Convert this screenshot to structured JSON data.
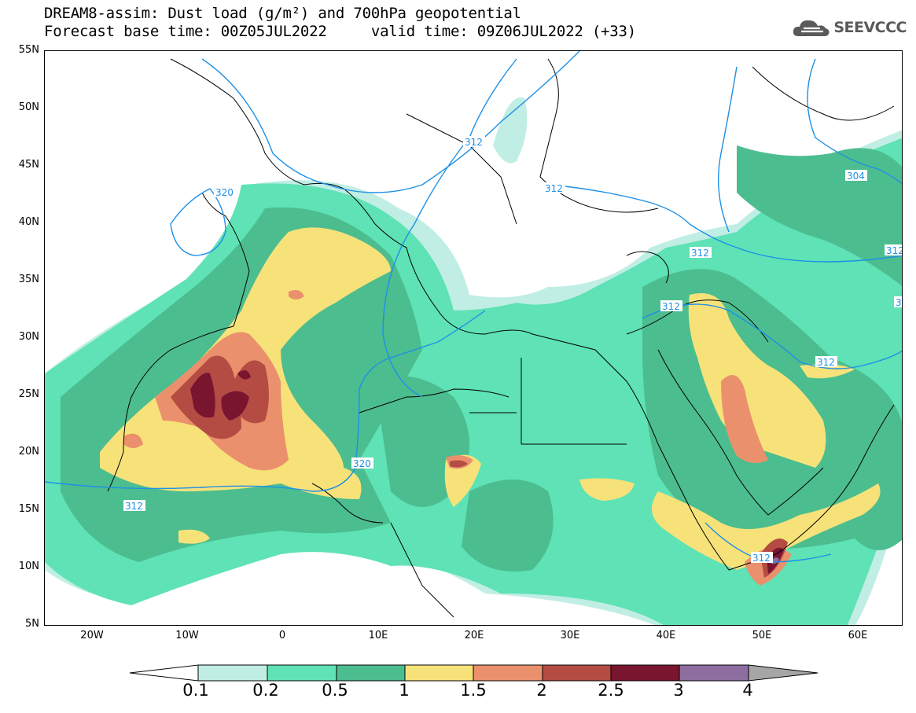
{
  "title": {
    "line1": "DREAM8-assim: Dust load (g/m²) and 700hPa geopotential",
    "line2": "Forecast base time: 00Z05JUL2022     valid time: 09Z06JUL2022 (+33)"
  },
  "logo": {
    "text": "SEEVCCC",
    "icon": "cloud-icon"
  },
  "axes": {
    "lat_labels": [
      "55N",
      "50N",
      "45N",
      "40N",
      "35N",
      "30N",
      "25N",
      "20N",
      "15N",
      "10N",
      "5N"
    ],
    "lon_labels": [
      "20W",
      "10W",
      "0",
      "10E",
      "20E",
      "30E",
      "40E",
      "50E",
      "60E"
    ]
  },
  "contour_labels": [
    "312",
    "320",
    "312",
    "312",
    "312",
    "312",
    "312",
    "304",
    "312",
    "312",
    "320",
    "3"
  ],
  "colorbar": {
    "ticks": [
      "0.1",
      "0.2",
      "0.5",
      "1",
      "1.5",
      "2",
      "2.5",
      "3",
      "4"
    ],
    "colors": [
      "#c0eee4",
      "#5ee2b6",
      "#4cbd8f",
      "#f7e27a",
      "#eb906c",
      "#b44c43",
      "#7a1530",
      "#8e6ea0"
    ]
  },
  "colors": {
    "land": "#ffffff",
    "coast": "#000000",
    "contour": "#1e90e6",
    "dust_01": "#c0eee4",
    "dust_02": "#5ee2b6",
    "dust_05": "#4cbd8f",
    "dust_1": "#f7e27a",
    "dust_15": "#eb906c",
    "dust_2": "#b44c43",
    "dust_25": "#7a1530",
    "dust_3": "#8e6ea0"
  }
}
